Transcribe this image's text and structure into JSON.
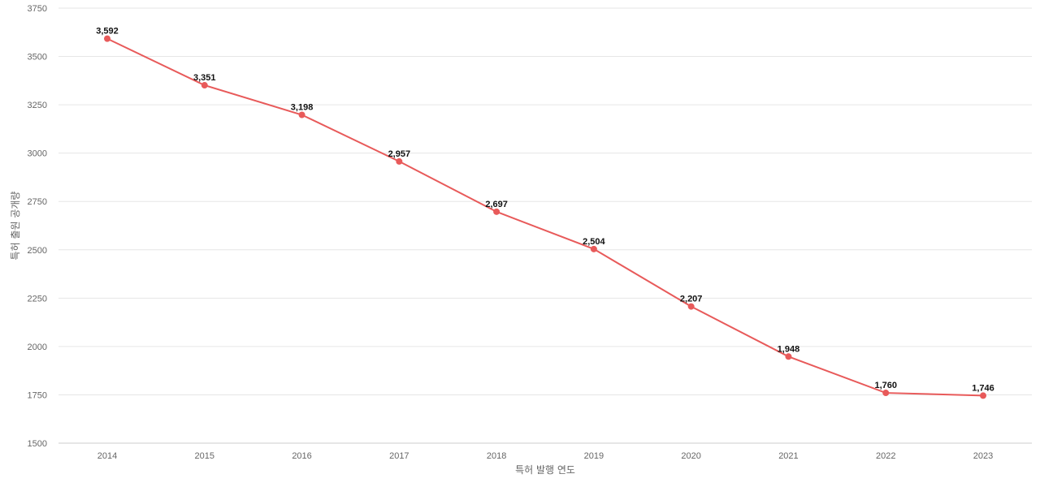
{
  "chart_data": {
    "type": "line",
    "title": "",
    "xlabel": "특허 발행 연도",
    "ylabel": "특허 출원 공개량",
    "categories": [
      "2014",
      "2015",
      "2016",
      "2017",
      "2018",
      "2019",
      "2020",
      "2021",
      "2022",
      "2023"
    ],
    "series": [
      {
        "values": [
          3592,
          3351,
          3198,
          2957,
          2697,
          2504,
          2207,
          1948,
          1760,
          1746
        ],
        "labels": [
          "3,592",
          "3,351",
          "3,198",
          "2,957",
          "2,697",
          "2,504",
          "2,207",
          "1,948",
          "1,760",
          "1,746"
        ],
        "color": "#e85a5a"
      }
    ],
    "ylim": [
      1500,
      3750
    ],
    "yticks": [
      "1500",
      "1750",
      "2000",
      "2250",
      "2500",
      "2750",
      "3000",
      "3250",
      "3500",
      "3750"
    ],
    "grid": true,
    "legend": "none"
  }
}
